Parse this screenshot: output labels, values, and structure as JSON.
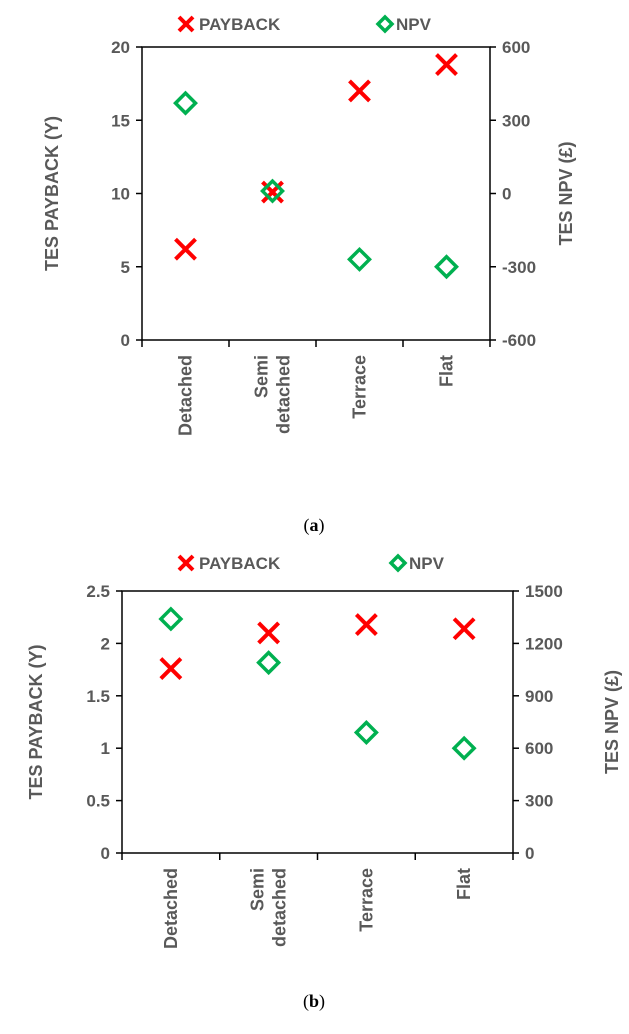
{
  "colors": {
    "payback": "#ff0000",
    "npv": "#00b050",
    "axis": "#000000",
    "text": "#595959"
  },
  "chart_data": [
    {
      "type": "scatter",
      "panel": "a",
      "caption_prefix": "(",
      "caption_letter": "a",
      "caption_suffix": ")",
      "categories": [
        "Detached",
        "Semi\ndetached",
        "Terrace",
        "Flat"
      ],
      "ylabel": "TES PAYBACK (Y)",
      "y2label": "TES NPV (£)",
      "ylim": [
        0,
        20
      ],
      "yticks": [
        0,
        5,
        10,
        15,
        20
      ],
      "y2lim": [
        -600,
        600
      ],
      "y2ticks": [
        -600,
        -300,
        0,
        300,
        600
      ],
      "legend_position": "top",
      "series": [
        {
          "name": "PAYBACK",
          "axis": "left",
          "marker": "x",
          "values": [
            6.2,
            10.1,
            17.0,
            18.8
          ]
        },
        {
          "name": "NPV",
          "axis": "right",
          "marker": "diamond",
          "values": [
            370,
            10,
            -270,
            -300
          ]
        }
      ]
    },
    {
      "type": "scatter",
      "panel": "b",
      "caption_prefix": "(",
      "caption_letter": "b",
      "caption_suffix": ")",
      "categories": [
        "Detached",
        "Semi\ndetached",
        "Terrace",
        "Flat"
      ],
      "ylabel": "TES PAYBACK (Y)",
      "y2label": "TES NPV (£)",
      "ylim": [
        0,
        2.5
      ],
      "yticks": [
        0,
        0.5,
        1,
        1.5,
        2,
        2.5
      ],
      "y2lim": [
        0,
        1500
      ],
      "y2ticks": [
        0,
        300,
        600,
        900,
        1200,
        1500
      ],
      "legend_position": "top",
      "series": [
        {
          "name": "PAYBACK",
          "axis": "left",
          "marker": "x",
          "values": [
            1.76,
            2.1,
            2.18,
            2.14
          ]
        },
        {
          "name": "NPV",
          "axis": "right",
          "marker": "diamond",
          "values": [
            1340,
            1090,
            690,
            600
          ]
        }
      ]
    }
  ]
}
